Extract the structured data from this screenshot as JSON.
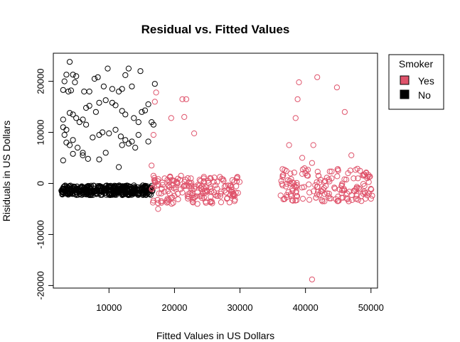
{
  "chart_data": {
    "type": "scatter",
    "title": "Residual vs. Fitted Values",
    "xlabel": "Fitted Values in US Dollars",
    "ylabel": "Risiduals in US Dollars",
    "xlim": [
      1500,
      51000
    ],
    "ylim": [
      -20500,
      25500
    ],
    "x_ticks": [
      10000,
      20000,
      30000,
      40000,
      50000
    ],
    "x_tick_labels": [
      "10000",
      "20000",
      "30000",
      "40000",
      "50000"
    ],
    "y_ticks": [
      -20000,
      -10000,
      0,
      10000,
      20000
    ],
    "y_tick_labels": [
      "-20000",
      "-10000",
      "0",
      "10000",
      "20000"
    ],
    "grid": false,
    "legend": {
      "title": "Smoker",
      "position": "top-right-outside",
      "entries": [
        {
          "label": "Yes",
          "color": "#DF536B"
        },
        {
          "label": "No",
          "color": "#000000"
        }
      ]
    },
    "series": [
      {
        "name": "No",
        "color": "#000000",
        "points": [
          [
            4000,
            23800
          ],
          [
            3500,
            21300
          ],
          [
            4500,
            21300
          ],
          [
            3000,
            18300
          ],
          [
            3800,
            18000
          ],
          [
            4200,
            18200
          ],
          [
            3200,
            20000
          ],
          [
            5000,
            21000
          ],
          [
            4800,
            19800
          ],
          [
            6200,
            18000
          ],
          [
            7000,
            18000
          ],
          [
            7800,
            20500
          ],
          [
            8300,
            20800
          ],
          [
            9800,
            22500
          ],
          [
            12500,
            21200
          ],
          [
            13000,
            22500
          ],
          [
            14800,
            22000
          ],
          [
            17000,
            19500
          ],
          [
            15500,
            14300
          ],
          [
            9200,
            19000
          ],
          [
            10500,
            18500
          ],
          [
            11500,
            18000
          ],
          [
            12000,
            18500
          ],
          [
            13500,
            19000
          ],
          [
            16000,
            15500
          ],
          [
            16500,
            12000
          ],
          [
            6500,
            14800
          ],
          [
            7000,
            15200
          ],
          [
            8000,
            14000
          ],
          [
            8500,
            15800
          ],
          [
            9500,
            16300
          ],
          [
            10500,
            15800
          ],
          [
            11000,
            15300
          ],
          [
            12000,
            14200
          ],
          [
            12500,
            13500
          ],
          [
            13800,
            12800
          ],
          [
            14500,
            12000
          ],
          [
            15000,
            14000
          ],
          [
            16800,
            11500
          ],
          [
            3000,
            11000
          ],
          [
            3500,
            10500
          ],
          [
            3000,
            12500
          ],
          [
            4000,
            13800
          ],
          [
            4500,
            13500
          ],
          [
            5000,
            12800
          ],
          [
            5500,
            12000
          ],
          [
            6000,
            12500
          ],
          [
            6500,
            11500
          ],
          [
            3200,
            9500
          ],
          [
            3500,
            8000
          ],
          [
            4000,
            7500
          ],
          [
            4500,
            8500
          ],
          [
            5200,
            7000
          ],
          [
            6000,
            6000
          ],
          [
            7500,
            9000
          ],
          [
            8500,
            9500
          ],
          [
            9000,
            10000
          ],
          [
            10000,
            9800
          ],
          [
            11000,
            10500
          ],
          [
            11800,
            9200
          ],
          [
            12000,
            7500
          ],
          [
            12500,
            8500
          ],
          [
            13000,
            7800
          ],
          [
            13500,
            8200
          ],
          [
            14000,
            7000
          ],
          [
            16000,
            8200
          ],
          [
            4500,
            5800
          ],
          [
            6000,
            5500
          ],
          [
            6800,
            4800
          ],
          [
            9500,
            6000
          ],
          [
            8500,
            4700
          ],
          [
            11500,
            3200
          ],
          [
            3000,
            4500
          ],
          [
            14500,
            9500
          ]
        ],
        "dense_band": {
          "x_range": [
            2700,
            16700
          ],
          "y_range": [
            -2300,
            -400
          ],
          "count": 400
        }
      },
      {
        "name": "Yes",
        "color": "#DF536B",
        "points": [
          [
            17200,
            17800
          ],
          [
            17000,
            16000
          ],
          [
            21200,
            16500
          ],
          [
            21800,
            16500
          ],
          [
            21500,
            13000
          ],
          [
            19500,
            12800
          ],
          [
            16800,
            9500
          ],
          [
            23000,
            9800
          ],
          [
            16500,
            3500
          ],
          [
            16800,
            1500
          ],
          [
            17000,
            500
          ],
          [
            17500,
            -200
          ],
          [
            18000,
            -3500
          ],
          [
            17500,
            -5000
          ],
          [
            18500,
            1000
          ],
          [
            19000,
            -1500
          ],
          [
            19500,
            -2800
          ],
          [
            20000,
            500
          ],
          [
            20500,
            -2000
          ],
          [
            21000,
            1500
          ],
          [
            21500,
            -500
          ],
          [
            22000,
            -2500
          ],
          [
            22500,
            1000
          ],
          [
            23000,
            -1000
          ],
          [
            23500,
            -4000
          ],
          [
            24000,
            500
          ],
          [
            24500,
            -2800
          ],
          [
            25000,
            -1500
          ],
          [
            25500,
            -3500
          ],
          [
            26000,
            300
          ],
          [
            26500,
            -1000
          ],
          [
            27000,
            -2500
          ],
          [
            27500,
            500
          ],
          [
            28000,
            -3000
          ],
          [
            28500,
            -500
          ],
          [
            29000,
            -2000
          ],
          [
            29500,
            1000
          ],
          [
            18200,
            -300
          ],
          [
            19200,
            200
          ],
          [
            20200,
            -800
          ],
          [
            21200,
            -1800
          ],
          [
            22200,
            200
          ],
          [
            23200,
            -600
          ],
          [
            24200,
            -1200
          ],
          [
            25200,
            100
          ],
          [
            26200,
            -2200
          ],
          [
            27200,
            900
          ],
          [
            28200,
            -400
          ],
          [
            19800,
            -3800
          ],
          [
            22800,
            -3200
          ],
          [
            24800,
            -3800
          ],
          [
            36500,
            2800
          ],
          [
            37000,
            -600
          ],
          [
            37500,
            7500
          ],
          [
            38000,
            -1000
          ],
          [
            38500,
            12800
          ],
          [
            38800,
            16500
          ],
          [
            39000,
            19800
          ],
          [
            39500,
            5000
          ],
          [
            40000,
            2000
          ],
          [
            40500,
            -200
          ],
          [
            41000,
            4000
          ],
          [
            41200,
            7500
          ],
          [
            41800,
            20800
          ],
          [
            41000,
            -18800
          ],
          [
            42000,
            1500
          ],
          [
            42500,
            -1500
          ],
          [
            43000,
            500
          ],
          [
            43500,
            -2500
          ],
          [
            44000,
            1000
          ],
          [
            44500,
            -1000
          ],
          [
            45000,
            2500
          ],
          [
            44800,
            18800
          ],
          [
            45500,
            -500
          ],
          [
            46000,
            14000
          ],
          [
            46500,
            2000
          ],
          [
            47000,
            5500
          ],
          [
            47500,
            -1500
          ],
          [
            48000,
            1000
          ],
          [
            48500,
            -2500
          ],
          [
            49000,
            -500
          ],
          [
            49500,
            -1800
          ],
          [
            50000,
            -3000
          ],
          [
            36800,
            -3000
          ],
          [
            37800,
            -2500
          ],
          [
            38600,
            -1500
          ],
          [
            39600,
            -3000
          ],
          [
            40600,
            -1800
          ],
          [
            41600,
            -2800
          ],
          [
            42600,
            -3500
          ],
          [
            43600,
            -2000
          ],
          [
            46600,
            -3500
          ],
          [
            48800,
            -2000
          ]
        ],
        "dense_bands": [
          {
            "x_range": [
              16500,
              30000
            ],
            "y_range": [
              -4000,
              1500
            ],
            "count": 150
          },
          {
            "x_range": [
              36000,
              50200
            ],
            "y_range": [
              -3500,
              3000
            ],
            "count": 140
          }
        ]
      }
    ]
  }
}
